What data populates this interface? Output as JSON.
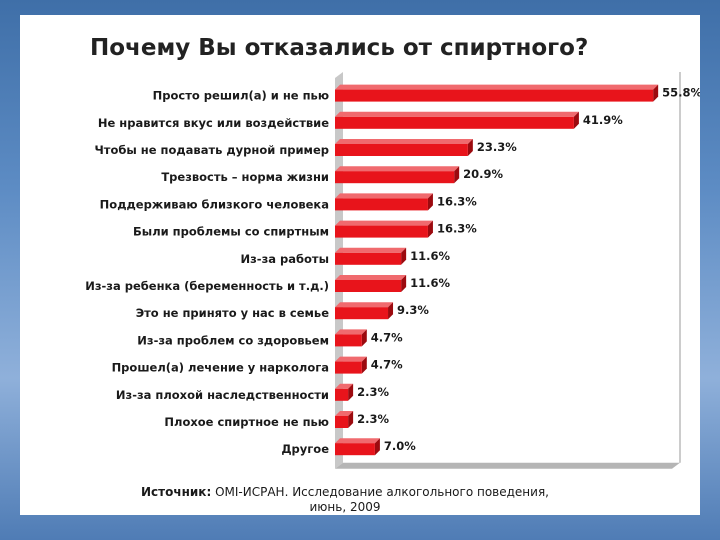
{
  "chart_data": {
    "type": "bar",
    "orientation": "horizontal",
    "title": "Почему Вы отказались от спиртного?",
    "categories": [
      "Просто решил(а) и не пью",
      "Не нравится вкус или воздействие",
      "Чтобы не подавать дурной пример",
      "Трезвость – норма жизни",
      "Поддерживаю близкого человека",
      "Были проблемы со спиртным",
      "Из-за работы",
      "Из-за ребенка (беременность и т.д.)",
      "Это не принято у нас в семье",
      "Из-за проблем со здоровьем",
      "Прошел(а) лечение у нарколога",
      "Из-за плохой наследственности",
      "Плохое спиртное не пью",
      "Другое"
    ],
    "values": [
      55.8,
      41.9,
      23.3,
      20.9,
      16.3,
      16.3,
      11.6,
      11.6,
      9.3,
      4.7,
      4.7,
      2.3,
      2.3,
      7.0
    ],
    "value_labels": [
      "55.8%",
      "41.9%",
      "23.3%",
      "20.9%",
      "16.3%",
      "16.3%",
      "11.6%",
      "11.6%",
      "9.3%",
      "4.7%",
      "4.7%",
      "2.3%",
      "2.3%",
      "7.0%"
    ],
    "xlim": [
      0,
      57
    ],
    "unit": "%",
    "bar_color": "#e8141b",
    "grid": false,
    "legend": "none"
  },
  "source": {
    "label": "Источник:",
    "text": "ОМI-ИСРАН. Исследование алкогольного поведения,",
    "date": "июнь, 2009"
  }
}
